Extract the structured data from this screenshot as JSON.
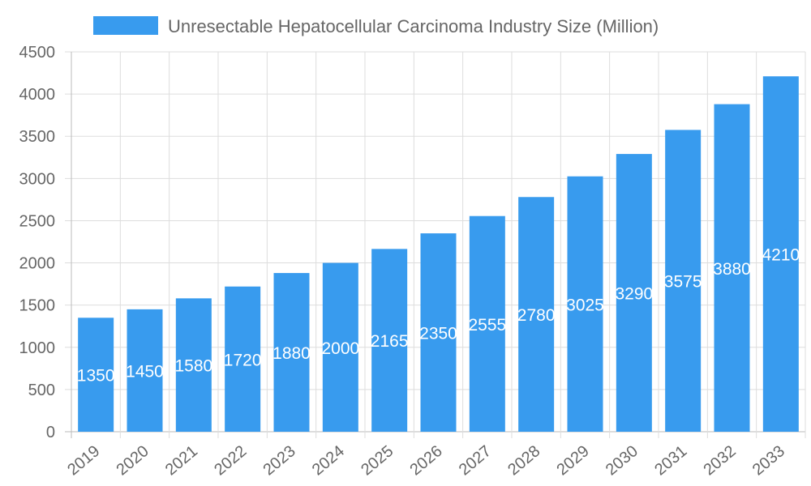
{
  "chart_data": {
    "type": "bar",
    "categories": [
      "2019",
      "2020",
      "2021",
      "2022",
      "2023",
      "2024",
      "2025",
      "2026",
      "2027",
      "2028",
      "2029",
      "2030",
      "2031",
      "2032",
      "2033"
    ],
    "series": [
      {
        "name": "Unresectable Hepatocellular Carcinoma Industry Size (Million)",
        "values": [
          1350,
          1450,
          1580,
          1720,
          1880,
          2000,
          2165,
          2350,
          2555,
          2780,
          3025,
          3290,
          3575,
          3880,
          4210
        ],
        "color": "#389BEE"
      }
    ],
    "ylim": [
      0,
      4500
    ],
    "yticks": [
      0,
      500,
      1000,
      1500,
      2000,
      2500,
      3000,
      3500,
      4000,
      4500
    ],
    "grid": true,
    "legend": "top-center",
    "data_labels": true,
    "data_label_color": "#ffffff"
  }
}
